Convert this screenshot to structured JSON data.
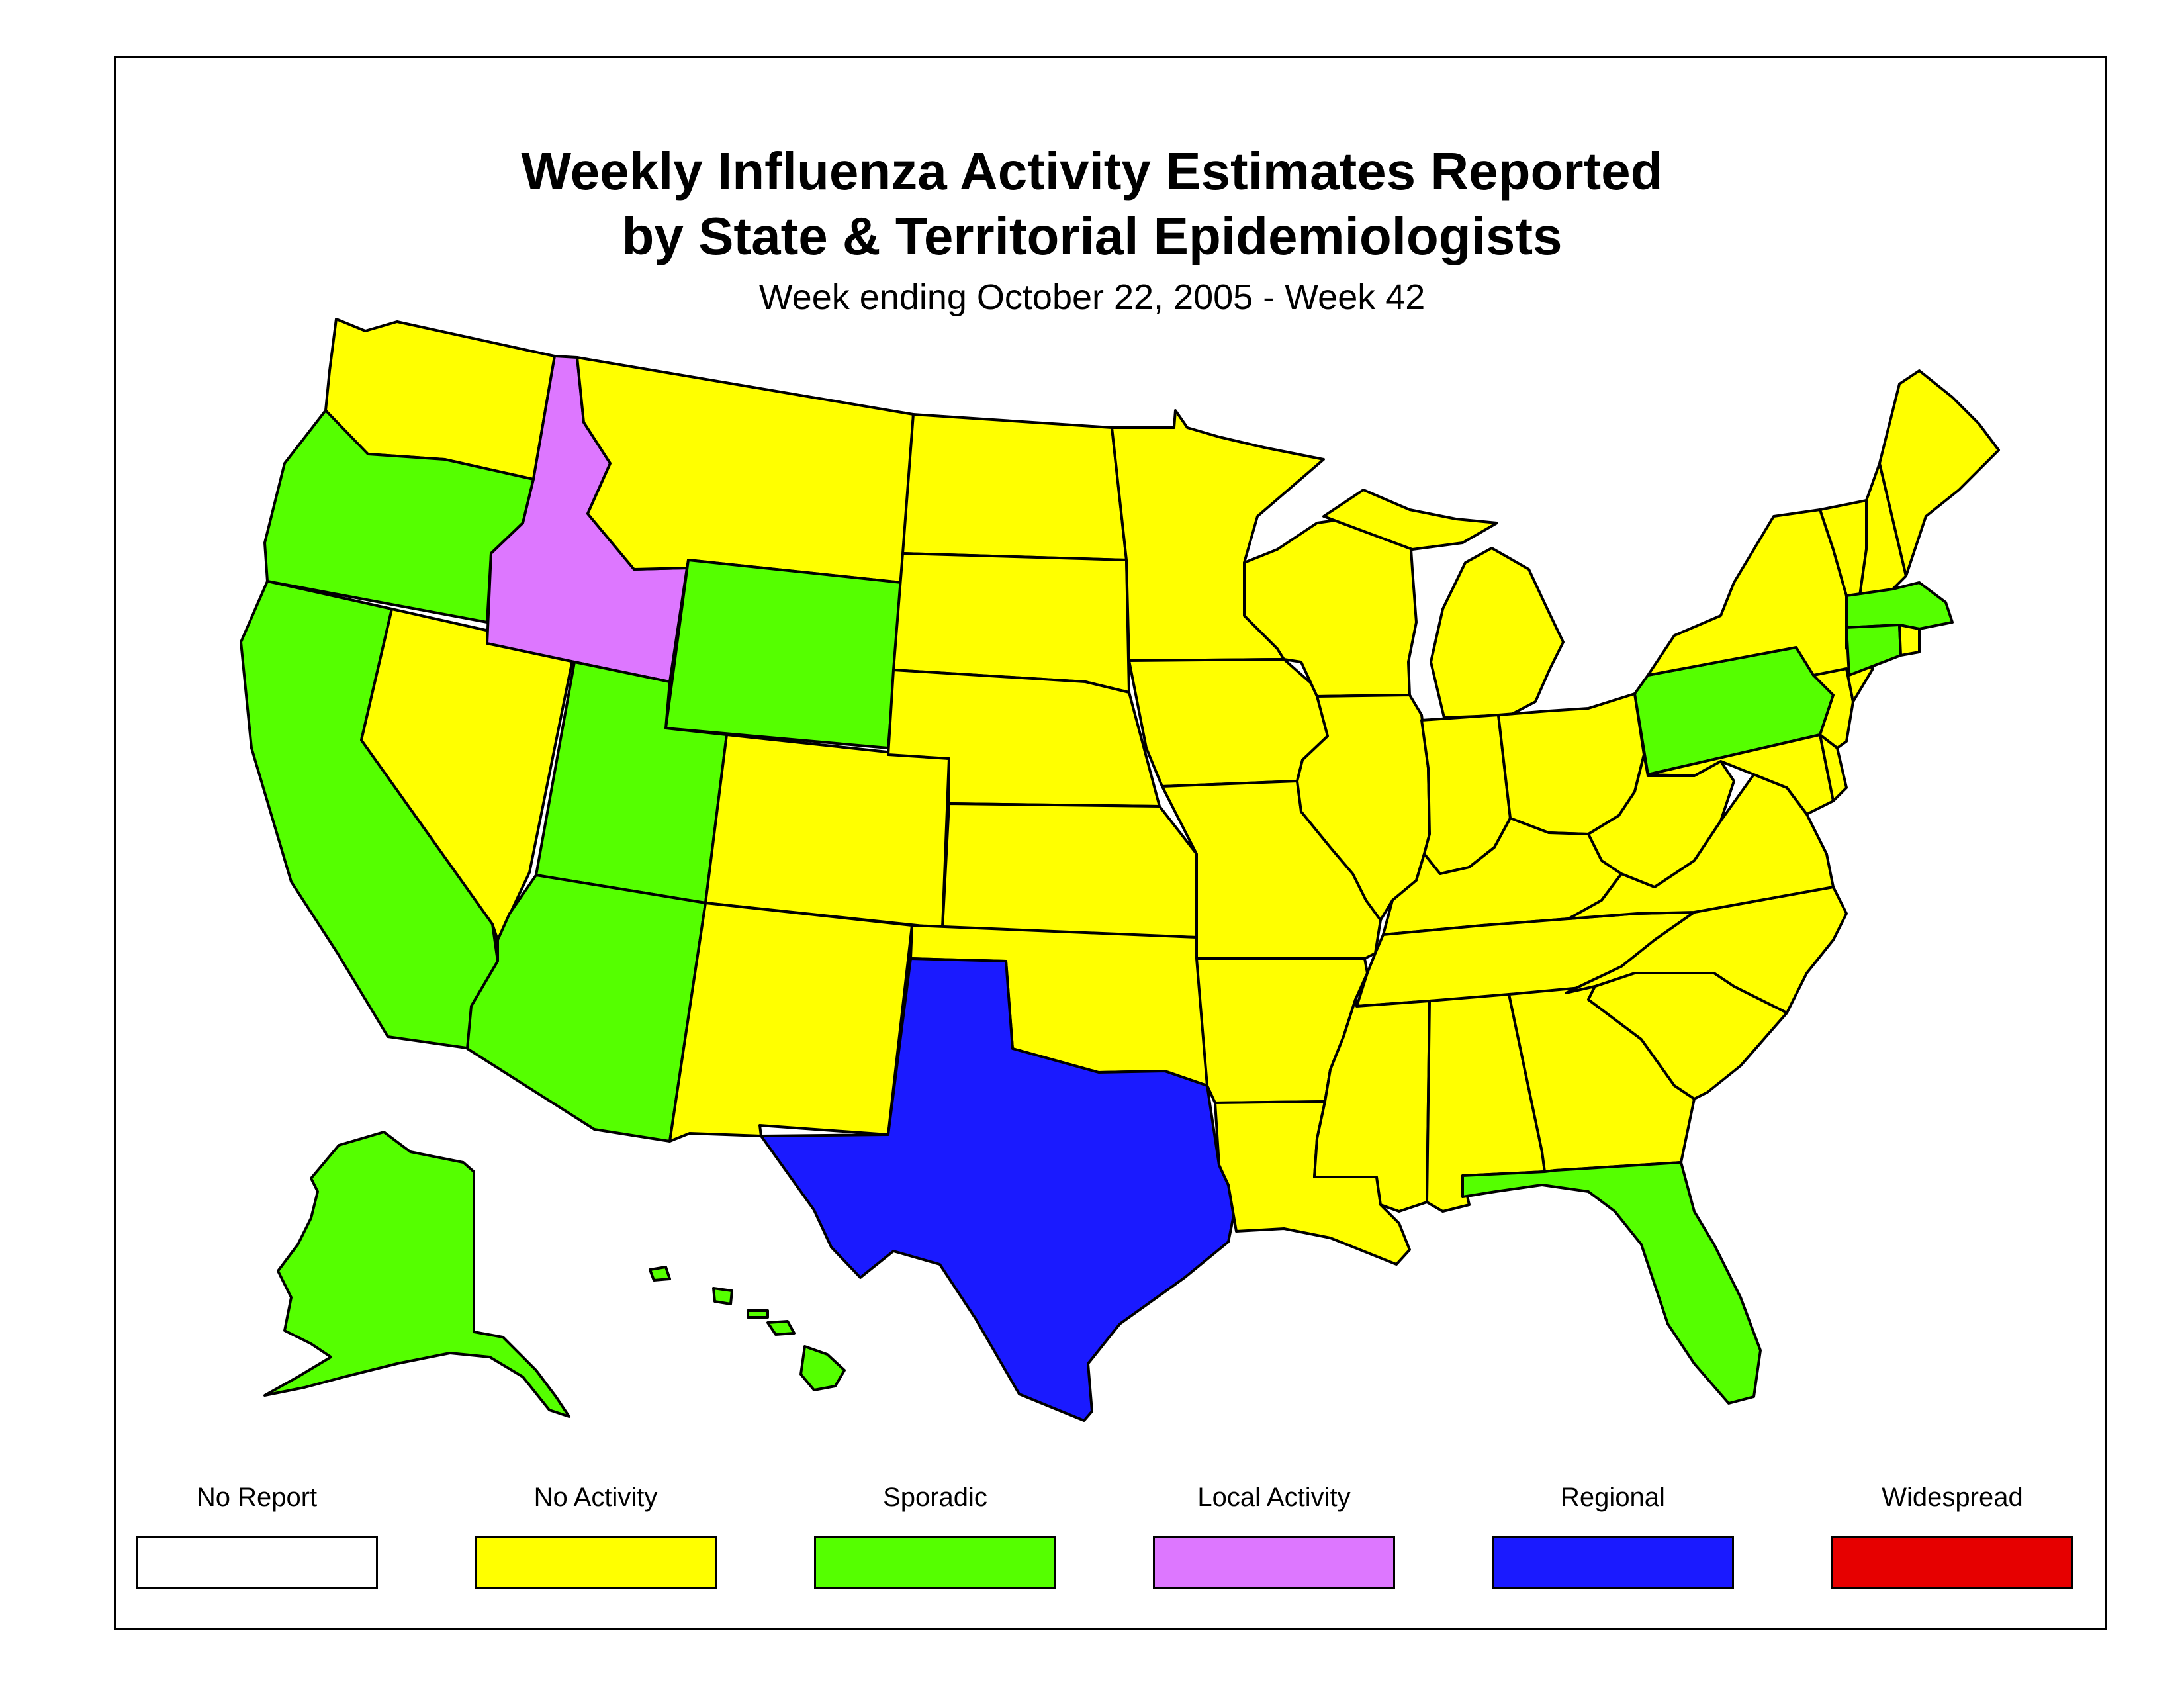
{
  "title_line1": "Weekly Influenza Activity Estimates Reported",
  "title_line2": "by State & Territorial Epidemiologists",
  "subtitle": "Week ending October 22, 2005 - Week 42",
  "legend": [
    {
      "label": "No Report",
      "color": "#ffffff"
    },
    {
      "label": "No Activity",
      "color": "#ffff00"
    },
    {
      "label": "Sporadic",
      "color": "#55ff00"
    },
    {
      "label": "Local Activity",
      "color": "#dd77ff"
    },
    {
      "label": "Regional",
      "color": "#1a1aff"
    },
    {
      "label": "Widespread",
      "color": "#e60000"
    }
  ],
  "activity": {
    "Idaho": "Local Activity",
    "Texas": "Regional",
    "Oregon": "Sporadic",
    "California": "Sporadic",
    "Utah": "Sporadic",
    "Wyoming": "Sporadic",
    "Arizona": "Sporadic",
    "Alaska": "Sporadic",
    "Hawaii": "Sporadic",
    "Florida": "Sporadic",
    "Pennsylvania": "Sporadic",
    "Massachusetts": "Sporadic",
    "Connecticut": "Sporadic",
    "Washington": "No Activity",
    "Montana": "No Activity",
    "Nevada": "No Activity",
    "Colorado": "No Activity",
    "New Mexico": "No Activity",
    "North Dakota": "No Activity",
    "South Dakota": "No Activity",
    "Nebraska": "No Activity",
    "Kansas": "No Activity",
    "Oklahoma": "No Activity",
    "Minnesota": "No Activity",
    "Iowa": "No Activity",
    "Missouri": "No Activity",
    "Arkansas": "No Activity",
    "Louisiana": "No Activity",
    "Wisconsin": "No Activity",
    "Illinois": "No Activity",
    "Michigan": "No Activity",
    "Indiana": "No Activity",
    "Ohio": "No Activity",
    "Kentucky": "No Activity",
    "Tennessee": "No Activity",
    "Mississippi": "No Activity",
    "Alabama": "No Activity",
    "Georgia": "No Activity",
    "South Carolina": "No Activity",
    "North Carolina": "No Activity",
    "Virginia": "No Activity",
    "West Virginia": "No Activity",
    "Maryland": "No Activity",
    "Delaware": "No Activity",
    "New Jersey": "No Activity",
    "New York": "No Activity",
    "Vermont": "No Activity",
    "New Hampshire": "No Activity",
    "Maine": "No Activity",
    "Rhode Island": "No Activity"
  }
}
